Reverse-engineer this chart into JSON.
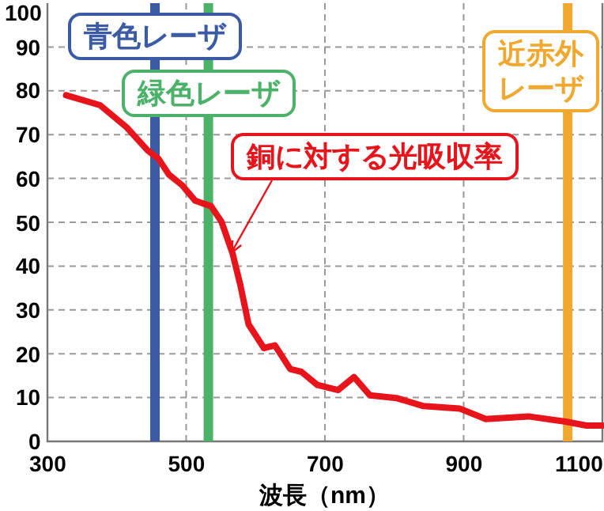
{
  "chart_data": {
    "type": "line",
    "xlabel": "波長（nm）",
    "xlim": [
      300,
      1100
    ],
    "xticks": [
      300,
      500,
      700,
      900,
      1100
    ],
    "ylim": [
      0,
      100
    ],
    "yticks": [
      0,
      10,
      20,
      30,
      40,
      50,
      60,
      70,
      80,
      90,
      100
    ],
    "grid": true,
    "marker": "none",
    "line_style": "solid",
    "series": [
      {
        "color": "#e8141c",
        "x": [
          327,
          376,
          414,
          445,
          460,
          475,
          494,
          513,
          536,
          551,
          567,
          578,
          590,
          612,
          628,
          650,
          666,
          689,
          719,
          742,
          765,
          803,
          841,
          894,
          932,
          993,
          1047,
          1077,
          1100
        ],
        "values": [
          79,
          76.7,
          71.7,
          66.3,
          64.5,
          60.9,
          58.5,
          54.9,
          53.7,
          50.1,
          42.9,
          35.7,
          26.7,
          21.3,
          21.9,
          16.5,
          15.9,
          12.9,
          11.7,
          14.7,
          10.5,
          9.9,
          8.1,
          7.5,
          5.1,
          5.7,
          4.5,
          3.6,
          3.6
        ]
      }
    ],
    "ref_lines": [
      {
        "axis": "x",
        "value": 455,
        "label": "青色レーザ",
        "color": "#3c5ba5"
      },
      {
        "axis": "x",
        "value": 532,
        "label": "緑色レーザ",
        "color": "#4cb26a"
      },
      {
        "axis": "x",
        "value": 1050,
        "label": "近赤外レーザ",
        "color": "#f0a830"
      }
    ],
    "annotations": [
      {
        "text": "銅に対する光吸収率",
        "x": 565,
        "y": 43
      }
    ]
  }
}
